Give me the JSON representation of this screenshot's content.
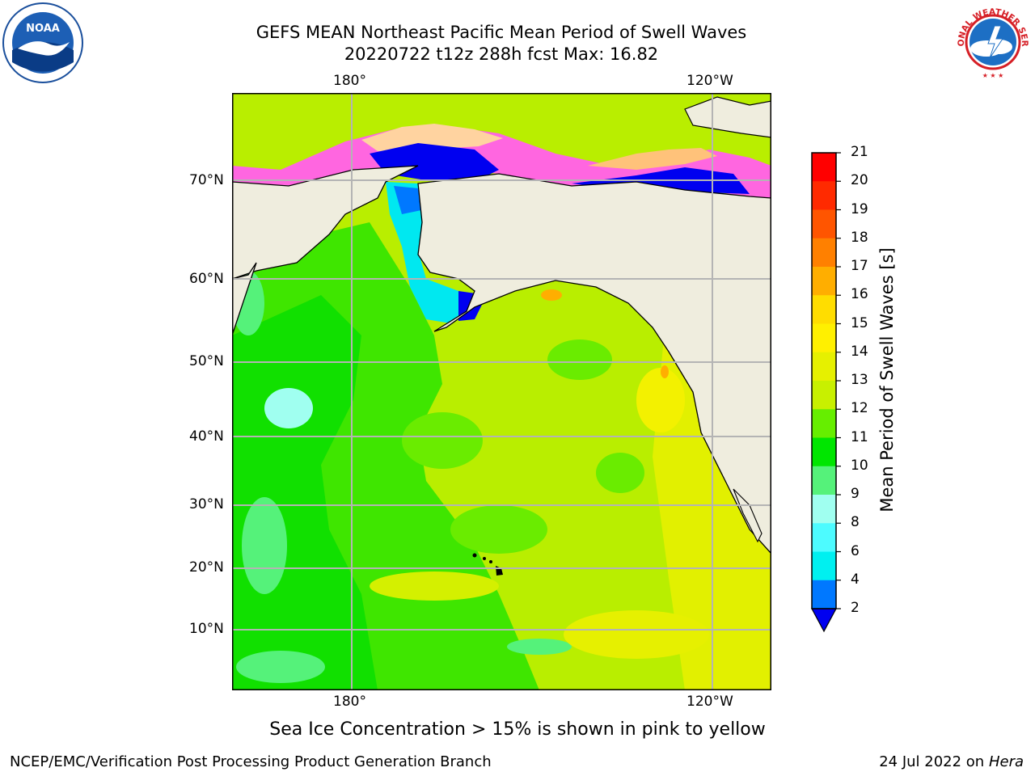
{
  "header": {
    "title_line1": "GEFS MEAN Northeast Pacific Mean Period of Swell Waves",
    "title_line2": "20220722 t12z 288h fcst   Max: 16.82"
  },
  "logos": {
    "left": {
      "icon": "noaa-logo",
      "text": "NOAA"
    },
    "right": {
      "icon": "nws-logo",
      "text": "NATIONAL WEATHER SERVICE"
    }
  },
  "map": {
    "projection": "mercator",
    "lon_ticks_top": [
      "180°",
      "120°W"
    ],
    "lon_ticks_bottom": [
      "180°",
      "120°W"
    ],
    "lat_ticks": [
      "70°N",
      "60°N",
      "50°N",
      "40°N",
      "30°N",
      "20°N",
      "10°N"
    ],
    "ocean_color": "#b9ee00",
    "land_color": "#efedde",
    "grid_color": "#b4b4b4"
  },
  "colorbar": {
    "label": "Mean Period of Swell Waves [s]",
    "ticks": [
      "21",
      "20",
      "19",
      "18",
      "17",
      "16",
      "15",
      "14",
      "13",
      "12",
      "11",
      "10",
      "9",
      "8",
      "6",
      "4",
      "2"
    ],
    "colors": [
      "#ff0000",
      "#ff2a00",
      "#ff5500",
      "#ff8000",
      "#ffae00",
      "#ffdd00",
      "#fff000",
      "#e6f000",
      "#c8f000",
      "#66ee00",
      "#00e600",
      "#55f27a",
      "#a0fff0",
      "#4dfbff",
      "#00f0f0",
      "#0078ff",
      "#0000f0"
    ],
    "extend_color": "#0000f0"
  },
  "notes": {
    "ice": "Sea Ice Concentration > 15% is shown in pink to yellow"
  },
  "footer": {
    "left": "NCEP/EMC/Verification Post Processing Product Generation Branch",
    "right_date": "24 Jul 2022 on ",
    "right_host": "Hera"
  }
}
